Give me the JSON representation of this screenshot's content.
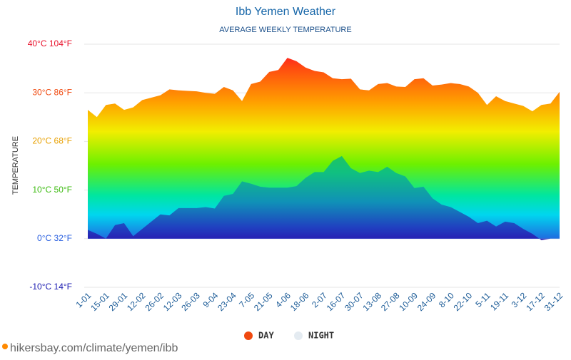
{
  "chart_data": {
    "type": "area",
    "title": "Ibb Yemen Weather",
    "subtitle": "AVERAGE WEEKLY TEMPERATURE",
    "y_label": "TEMPERATURE",
    "source": "hikersbay.com/climate/yemen/ibb",
    "categories": [
      "1-01",
      null,
      "15-01",
      null,
      "29-01",
      null,
      "12-02",
      null,
      "26-02",
      null,
      "12-03",
      null,
      "26-03",
      null,
      "9-04",
      null,
      "23-04",
      null,
      "7-05",
      null,
      "21-05",
      null,
      "4-06",
      null,
      "18-06",
      null,
      "2-07",
      null,
      "16-07",
      null,
      "30-07",
      null,
      "13-08",
      null,
      "27-08",
      null,
      "10-09",
      null,
      "24-09",
      null,
      "8-10",
      null,
      "22-10",
      null,
      "5-11",
      null,
      "19-11",
      null,
      "3-12",
      null,
      "17-12",
      null,
      "31-12"
    ],
    "series": [
      {
        "name": "DAY",
        "color": "#f0490f",
        "values": [
          26.5,
          25,
          27.5,
          27.8,
          26.5,
          27,
          28.5,
          29,
          29.5,
          30.7,
          30.5,
          30.4,
          30.3,
          30,
          29.8,
          31.2,
          30.5,
          28.3,
          31.8,
          32.3,
          34.3,
          34.7,
          37.2,
          36.5,
          35.2,
          34.5,
          34.2,
          33,
          32.8,
          32.9,
          30.7,
          30.5,
          31.8,
          32,
          31.3,
          31.2,
          32.8,
          33,
          31.5,
          31.7,
          32,
          31.8,
          31.3,
          30,
          27.5,
          29.3,
          28.3,
          27.8,
          27.3,
          26.2,
          27.5,
          27.8,
          30.2
        ]
      },
      {
        "name": "NIGHT",
        "color": "#e4ebf1",
        "values": [
          1.8,
          1,
          0,
          2.8,
          3.2,
          0.5,
          2,
          3.5,
          5,
          4.8,
          6.3,
          6.3,
          6.3,
          6.5,
          6.2,
          8.8,
          9.2,
          11.8,
          11.3,
          10.7,
          10.5,
          10.5,
          10.5,
          10.8,
          12.5,
          13.7,
          13.7,
          16,
          17,
          14.5,
          13.5,
          14,
          13.7,
          14.8,
          13.5,
          12.8,
          10.4,
          10.7,
          8.3,
          7,
          6.5,
          5.5,
          4.5,
          3.2,
          3.7,
          2.5,
          3.5,
          3.2,
          2,
          1,
          -0.3,
          0,
          0
        ]
      }
    ],
    "ylim": [
      -10,
      40
    ],
    "yticks": [
      {
        "value": -10,
        "label": "-10°C 14°F"
      },
      {
        "value": 0,
        "label": "0°C 32°F"
      },
      {
        "value": 10,
        "label": "10°C 50°F"
      },
      {
        "value": 20,
        "label": "20°C 68°F"
      },
      {
        "value": 30,
        "label": "30°C 86°F"
      },
      {
        "value": 40,
        "label": "40°C 104°F"
      }
    ],
    "grid": true
  }
}
